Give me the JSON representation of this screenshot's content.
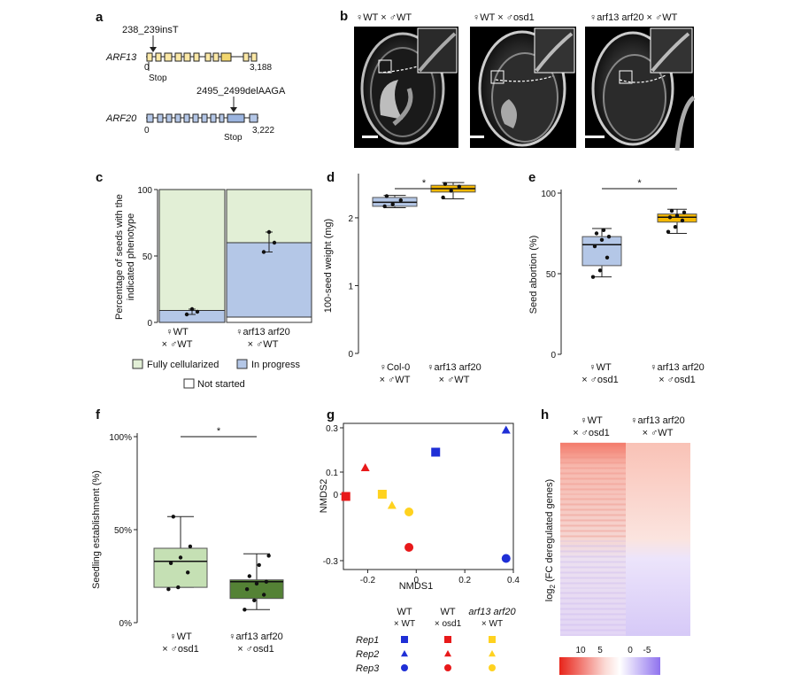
{
  "panels": {
    "a": "a",
    "b": "b",
    "c": "c",
    "d": "d",
    "e": "e",
    "f": "f",
    "g": "g",
    "h": "h"
  },
  "panel_a": {
    "gene1": "ARF13",
    "mut1": "238_239insT",
    "start1": "0",
    "stop1": "Stop",
    "end1": "3,188",
    "gene2": "ARF20",
    "mut2": "2495_2499delAAGA",
    "start2": "0",
    "stop2": "Stop",
    "end2": "3,222"
  },
  "panel_b": {
    "labels": [
      "♀WT × ♂WT",
      "♀WT × ♂osd1",
      "♀arf13 arf20 × ♂WT"
    ]
  },
  "colors": {
    "green_light": "#e2efd6",
    "blue_light": "#b4c7e7",
    "orange": "#f5b800",
    "dark_green": "#548235",
    "mid_green": "#c5e0b4",
    "red": "#e8191a",
    "blue": "#1f2fd6",
    "yellow": "#ffd21f"
  },
  "chart_data": [
    {
      "panel": "c",
      "type": "bar",
      "ylabel": "Percentage of seeds with the indicated phenotype",
      "categories": [
        "♀WT × ♂WT",
        "♀arf13 arf20 × ♂WT"
      ],
      "ylim": [
        0,
        100
      ],
      "yticks": [
        "0",
        "50",
        "100"
      ],
      "series": [
        {
          "name": "Not started",
          "values": [
            0,
            4
          ]
        },
        {
          "name": "In progress",
          "values": [
            9,
            56
          ]
        },
        {
          "name": "Fully cellularized",
          "values": [
            91,
            40
          ]
        }
      ],
      "points": [
        [
          6,
          10,
          8
        ],
        [
          53,
          68,
          60
        ]
      ],
      "legend": [
        "Fully cellularized",
        "In progress",
        "Not started"
      ]
    },
    {
      "panel": "d",
      "type": "box",
      "ylabel": "100-seed weight (mg)",
      "categories": [
        "♀Col-0 × ♂WT",
        "♀arf13 arf20 × ♂WT"
      ],
      "ylim": [
        0,
        2.6
      ],
      "yticks": [
        "0",
        "1",
        "2"
      ],
      "boxes": [
        {
          "q1": 2.17,
          "median": 2.23,
          "q3": 2.3,
          "lo": 2.15,
          "hi": 2.33
        },
        {
          "q1": 2.38,
          "median": 2.43,
          "q3": 2.48,
          "lo": 2.28,
          "hi": 2.52
        }
      ],
      "points": [
        [
          2.17,
          2.2,
          2.26,
          2.32
        ],
        [
          2.3,
          2.4,
          2.46,
          2.5
        ]
      ],
      "significance": "*"
    },
    {
      "panel": "e",
      "type": "box",
      "ylabel": "Seed abortion (%)",
      "categories": [
        "♀WT × ♂osd1",
        "♀arf13 arf20 × ♂osd1"
      ],
      "ylim": [
        0,
        100
      ],
      "yticks": [
        "0",
        "50",
        "100"
      ],
      "boxes": [
        {
          "q1": 55,
          "median": 68,
          "q3": 73,
          "lo": 48,
          "hi": 78
        },
        {
          "q1": 82,
          "median": 85,
          "q3": 87,
          "lo": 75,
          "hi": 90
        }
      ],
      "points": [
        [
          48,
          52,
          60,
          67,
          71,
          73,
          75,
          77
        ],
        [
          76,
          79,
          83,
          85,
          86,
          88,
          89
        ]
      ],
      "significance": "*"
    },
    {
      "panel": "f",
      "type": "box",
      "ylabel": "Seedling establishment (%)",
      "categories": [
        "♀WT × ♂osd1",
        "♀arf13 arf20 × ♂osd1"
      ],
      "ylim": [
        0,
        100
      ],
      "yticks": [
        "0%",
        "50%",
        "100%"
      ],
      "boxes": [
        {
          "q1": 19,
          "median": 33,
          "q3": 40,
          "lo": 19,
          "hi": 57
        },
        {
          "q1": 13,
          "median": 22,
          "q3": 23,
          "lo": 7,
          "hi": 37
        }
      ],
      "points": [
        [
          18,
          19,
          27,
          32,
          35,
          41,
          57
        ],
        [
          7,
          12,
          15,
          18,
          21,
          22,
          25,
          31,
          36
        ]
      ],
      "significance": "*"
    },
    {
      "panel": "g",
      "type": "scatter",
      "xlabel": "NMDS1",
      "ylabel": "NMDS2",
      "xlim": [
        -0.3,
        0.4
      ],
      "ylim": [
        -0.34,
        0.32
      ],
      "xticks": [
        "-0.2",
        "0",
        "0.2",
        "0.4"
      ],
      "yticks": [
        "-0.3",
        "0",
        "0.1",
        "0.3"
      ],
      "points": [
        {
          "x": 0.37,
          "y": 0.29,
          "group": "WT × WT",
          "rep": "Rep2"
        },
        {
          "x": 0.08,
          "y": 0.19,
          "group": "WT × WT",
          "rep": "Rep1"
        },
        {
          "x": 0.37,
          "y": -0.29,
          "group": "WT × WT",
          "rep": "Rep3"
        },
        {
          "x": -0.29,
          "y": -0.01,
          "group": "WT × osd1",
          "rep": "Rep1"
        },
        {
          "x": -0.21,
          "y": 0.12,
          "group": "WT × osd1",
          "rep": "Rep2"
        },
        {
          "x": -0.03,
          "y": -0.24,
          "group": "WT × osd1",
          "rep": "Rep3"
        },
        {
          "x": -0.14,
          "y": 0.0,
          "group": "arf13 arf20 × WT",
          "rep": "Rep1"
        },
        {
          "x": -0.1,
          "y": -0.05,
          "group": "arf13 arf20 × WT",
          "rep": "Rep2"
        },
        {
          "x": -0.03,
          "y": -0.08,
          "group": "arf13 arf20 × WT",
          "rep": "Rep3"
        }
      ],
      "legend_groups": [
        "WT\n× WT",
        "WT\n× osd1",
        "arf13 arf20\n× WT"
      ],
      "legend_reps": [
        "Rep1",
        "Rep2",
        "Rep3"
      ]
    },
    {
      "panel": "h",
      "type": "heatmap",
      "columns": [
        "♀WT × ♂osd1",
        "♀arf13 arf20 × ♂WT"
      ],
      "ylabel": "log2(FC deregulated genes)",
      "scale_ticks": [
        "10",
        "5",
        "0",
        "-5"
      ]
    }
  ],
  "legend_c": {
    "fully": "Fully cellularized",
    "progress": "In progress",
    "notstarted": "Not started"
  },
  "star": "*"
}
